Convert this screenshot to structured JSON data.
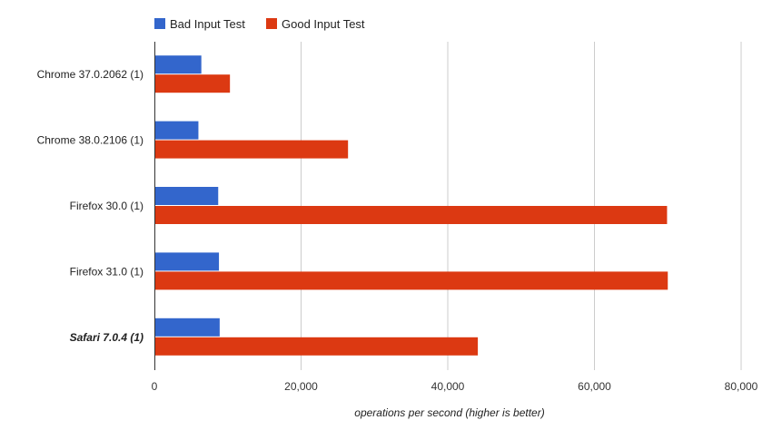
{
  "chart_data": {
    "type": "bar",
    "orientation": "horizontal",
    "categories": [
      "Chrome 37.0.2062 (1)",
      "Chrome 38.0.2106 (1)",
      "Firefox 30.0 (1)",
      "Firefox 31.0 (1)",
      "Safari 7.0.4 (1)"
    ],
    "category_emphasis": [
      false,
      false,
      false,
      false,
      true
    ],
    "series": [
      {
        "name": "Bad Input Test",
        "color": "#3366cc",
        "values": [
          6400,
          6000,
          8700,
          8800,
          8900
        ]
      },
      {
        "name": "Good Input Test",
        "color": "#dc3912",
        "values": [
          10300,
          26400,
          69900,
          70000,
          44100
        ]
      }
    ],
    "xlabel": "operations per second (higher is better)",
    "xlim": [
      0,
      80000
    ],
    "xticks": [
      0,
      20000,
      40000,
      60000,
      80000
    ],
    "xtick_labels": [
      "0",
      "20,000",
      "40,000",
      "60,000",
      "80,000"
    ],
    "grid": true,
    "legend_position": "top"
  }
}
